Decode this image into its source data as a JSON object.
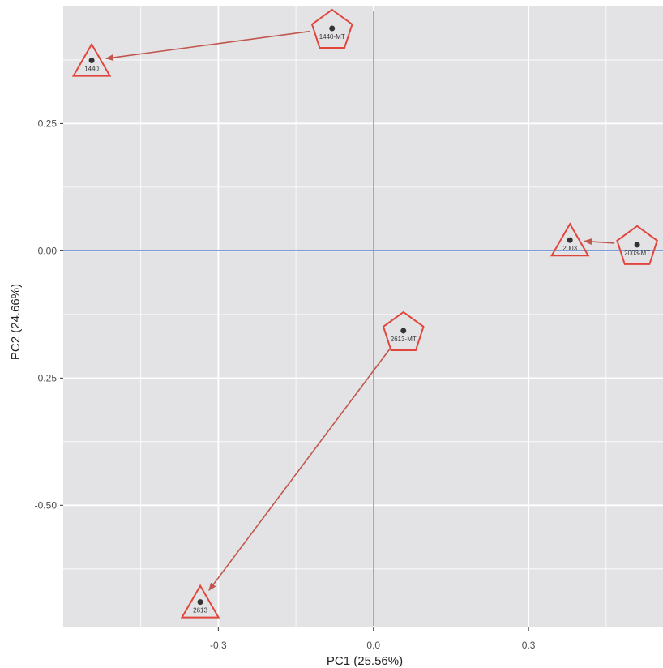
{
  "chart_data": {
    "type": "scatter",
    "title": "",
    "xlabel": "PC1 (25.56%)",
    "ylabel": "PC2 (24.66%)",
    "xlim": [
      -0.6,
      0.56
    ],
    "ylim": [
      -0.74,
      0.48
    ],
    "x_ticks": [
      -0.3,
      0.0,
      0.3
    ],
    "x_tick_labels": [
      "-0.3",
      "0.0",
      "0.3"
    ],
    "y_ticks": [
      0.25,
      0.0,
      -0.25,
      -0.5
    ],
    "y_tick_labels": [
      "0.25",
      "0.00",
      "-0.25",
      "-0.50"
    ],
    "grid": true,
    "reference_lines": {
      "x": 0,
      "y": 0
    },
    "points": [
      {
        "label": "1440",
        "x": -0.545,
        "y": 0.374,
        "shape": "triangle"
      },
      {
        "label": "1440-MT",
        "x": -0.08,
        "y": 0.437,
        "shape": "pentagon"
      },
      {
        "label": "2003",
        "x": 0.38,
        "y": 0.021,
        "shape": "triangle"
      },
      {
        "label": "2003-MT",
        "x": 0.51,
        "y": 0.012,
        "shape": "pentagon"
      },
      {
        "label": "2613",
        "x": -0.335,
        "y": -0.69,
        "shape": "triangle"
      },
      {
        "label": "2613-MT",
        "x": 0.058,
        "y": -0.157,
        "shape": "pentagon"
      }
    ],
    "arrows": [
      {
        "from": "1440-MT",
        "to": "1440"
      },
      {
        "from": "2003-MT",
        "to": "2003"
      },
      {
        "from": "2613-MT",
        "to": "2613"
      }
    ],
    "colors": {
      "panel": "#e3e3e6",
      "grid": "#ffffff",
      "reference_line": "#7b9bd9",
      "marker_outline": "#e0463c",
      "arrow": "#c0574d",
      "point": "#333333"
    }
  }
}
